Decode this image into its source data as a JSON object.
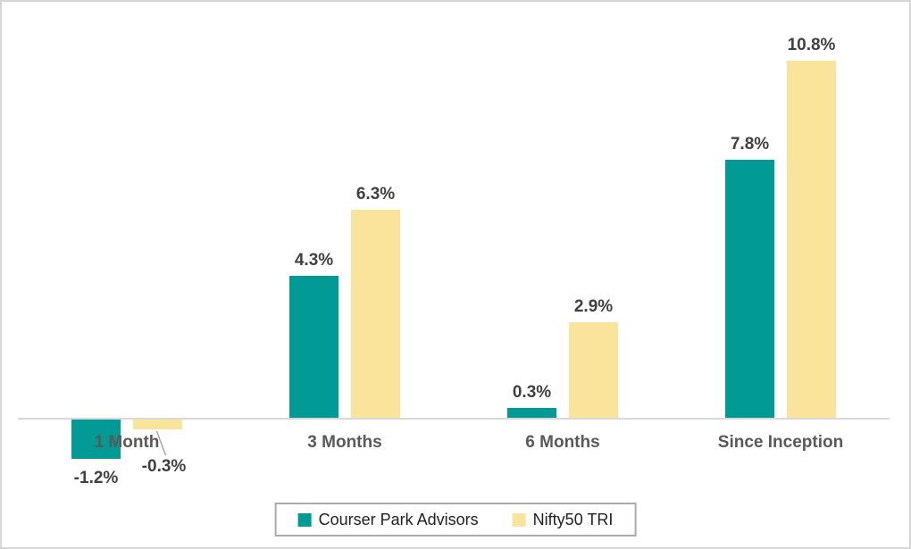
{
  "chart_data": {
    "type": "bar",
    "title": "",
    "xlabel": "",
    "ylabel": "",
    "value_unit": "%",
    "grid": false,
    "legend_position": "bottom",
    "ylim": [
      -2,
      12
    ],
    "categories": [
      "1 Month",
      "3 Months",
      "6 Months",
      "Since Inception"
    ],
    "series": [
      {
        "name": "Courser Park Advisors",
        "color": "#019a94",
        "values": [
          -1.2,
          4.3,
          0.3,
          7.8
        ],
        "labels": [
          "-1.2%",
          "4.3%",
          "0.3%",
          "7.8%"
        ]
      },
      {
        "name": "Nifty50 TRI",
        "color": "#fae39b",
        "values": [
          -0.3,
          6.3,
          2.9,
          10.8
        ],
        "labels": [
          "-0.3%",
          "6.3%",
          "2.9%",
          "10.8%"
        ]
      }
    ]
  }
}
